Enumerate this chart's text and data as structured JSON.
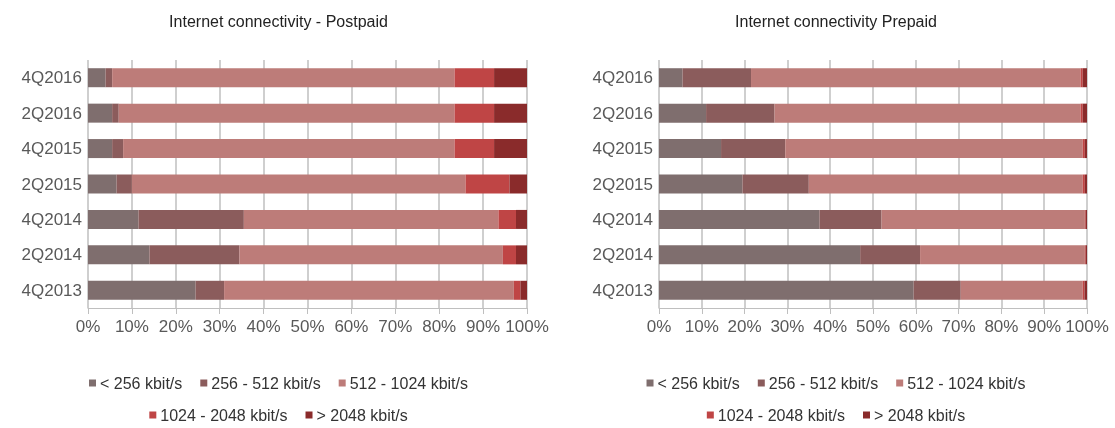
{
  "chart_data": [
    {
      "type": "bar",
      "orientation": "horizontal",
      "stacked": true,
      "title": "Internet connectivity - Postpaid",
      "categories": [
        "4Q2016",
        "2Q2016",
        "4Q2015",
        "2Q2015",
        "4Q2014",
        "2Q2014",
        "4Q2013"
      ],
      "series": [
        {
          "name": "< 256 kbit/s",
          "color": "#7f6e6e",
          "values": [
            4,
            5.5,
            5.5,
            6.5,
            11.5,
            14,
            24.5
          ]
        },
        {
          "name": "256 - 512 kbit/s",
          "color": "#8b5c5c",
          "values": [
            1.5,
            1.5,
            2.5,
            3.5,
            24,
            20.5,
            6.5
          ]
        },
        {
          "name": "512 - 1024 kbit/s",
          "color": "#bd7c79",
          "values": [
            78,
            76.5,
            75.5,
            76,
            58,
            60,
            66
          ]
        },
        {
          "name": "1024 - 2048 kbit/s",
          "color": "#bf4545",
          "values": [
            9,
            9,
            9,
            10,
            4,
            3,
            1.5
          ]
        },
        {
          "name": "> 2048 kbit/s",
          "color": "#8a2b2b",
          "values": [
            7.5,
            7.5,
            7.5,
            4,
            2.5,
            2.5,
            1.5
          ]
        }
      ],
      "xlim": [
        0,
        100
      ],
      "xticks": [
        {
          "value": 0,
          "label": "0%"
        },
        {
          "value": 10,
          "label": "10%"
        },
        {
          "value": 20,
          "label": "20%"
        },
        {
          "value": 30,
          "label": "30%"
        },
        {
          "value": 40,
          "label": "40%"
        },
        {
          "value": 50,
          "label": "50%"
        },
        {
          "value": 60,
          "label": "60%"
        },
        {
          "value": 70,
          "label": "70%"
        },
        {
          "value": 80,
          "label": "80%"
        },
        {
          "value": 90,
          "label": "90%"
        },
        {
          "value": 100,
          "label": "100%"
        }
      ],
      "grid": "x",
      "legend": "bottom"
    },
    {
      "type": "bar",
      "orientation": "horizontal",
      "stacked": true,
      "title": "Internet connectivity Prepaid",
      "categories": [
        "4Q2016",
        "2Q2016",
        "4Q2015",
        "2Q2015",
        "4Q2014",
        "2Q2014",
        "4Q2013"
      ],
      "series": [
        {
          "name": "< 256 kbit/s",
          "color": "#7f6e6e",
          "values": [
            5.5,
            11,
            14.5,
            19.5,
            37.5,
            47,
            59.5
          ]
        },
        {
          "name": "256 - 512 kbit/s",
          "color": "#8b5c5c",
          "values": [
            16,
            16,
            15,
            15.5,
            14.5,
            14,
            11
          ]
        },
        {
          "name": "512 - 1024 kbit/s",
          "color": "#bd7c79",
          "values": [
            77,
            71.5,
            69.5,
            64,
            47.5,
            38.5,
            28.5
          ]
        },
        {
          "name": "1024 - 2048 kbit/s",
          "color": "#bf4545",
          "values": [
            0.5,
            0.5,
            0.5,
            0.5,
            0.2,
            0.2,
            0.4
          ]
        },
        {
          "name": "> 2048 kbit/s",
          "color": "#8a2b2b",
          "values": [
            1,
            1,
            0.5,
            0.5,
            0.3,
            0.3,
            0.6
          ]
        }
      ],
      "xlim": [
        0,
        100
      ],
      "xticks": [
        {
          "value": 0,
          "label": "0%"
        },
        {
          "value": 10,
          "label": "10%"
        },
        {
          "value": 20,
          "label": "20%"
        },
        {
          "value": 30,
          "label": "30%"
        },
        {
          "value": 40,
          "label": "40%"
        },
        {
          "value": 50,
          "label": "50%"
        },
        {
          "value": 60,
          "label": "60%"
        },
        {
          "value": 70,
          "label": "70%"
        },
        {
          "value": 80,
          "label": "80%"
        },
        {
          "value": 90,
          "label": "90%"
        },
        {
          "value": 100,
          "label": "100%"
        }
      ],
      "grid": "x",
      "legend": "bottom"
    }
  ]
}
